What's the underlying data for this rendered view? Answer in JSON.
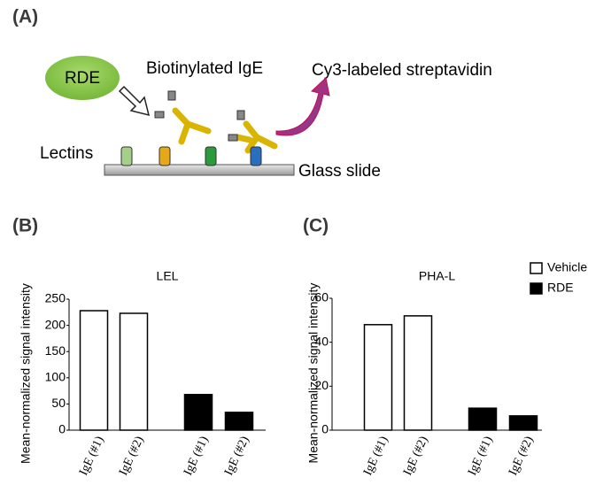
{
  "figure": {
    "panels": [
      "(A)",
      "(B)",
      "(C)"
    ],
    "diagram": {
      "enzyme": "RDE",
      "antibody": "Biotinylated IgE",
      "detector": "Cy3-labeled streptavidin",
      "lectins": "Lectins",
      "slide": "Glass slide"
    }
  },
  "chart_data": [
    {
      "type": "bar",
      "title": "LEL",
      "y_label": "Mean-normalized signal intensity",
      "categories": [
        "IgE (#1)",
        "IgE (#2)",
        "IgE (#1)",
        "IgE (#2)"
      ],
      "series": [
        {
          "name": "Vehicle",
          "color": "#ffffff",
          "values": [
            228,
            223,
            null,
            null
          ]
        },
        {
          "name": "RDE",
          "color": "#000000",
          "values": [
            null,
            null,
            68,
            34
          ]
        }
      ],
      "ylim": [
        0,
        250
      ],
      "yticks": [
        0,
        50,
        100,
        150,
        200,
        250
      ],
      "legend": false
    },
    {
      "type": "bar",
      "title": "PHA-L",
      "y_label": "Mean-normalized signal intensity",
      "categories": [
        "IgE (#1)",
        "IgE (#2)",
        "IgE (#1)",
        "IgE (#2)"
      ],
      "series": [
        {
          "name": "Vehicle",
          "color": "#ffffff",
          "values": [
            48,
            52,
            null,
            null
          ]
        },
        {
          "name": "RDE",
          "color": "#000000",
          "values": [
            null,
            null,
            10,
            6.5
          ]
        }
      ],
      "ylim": [
        0,
        60
      ],
      "yticks": [
        0,
        20,
        40,
        60
      ],
      "legend": "upper right"
    }
  ]
}
